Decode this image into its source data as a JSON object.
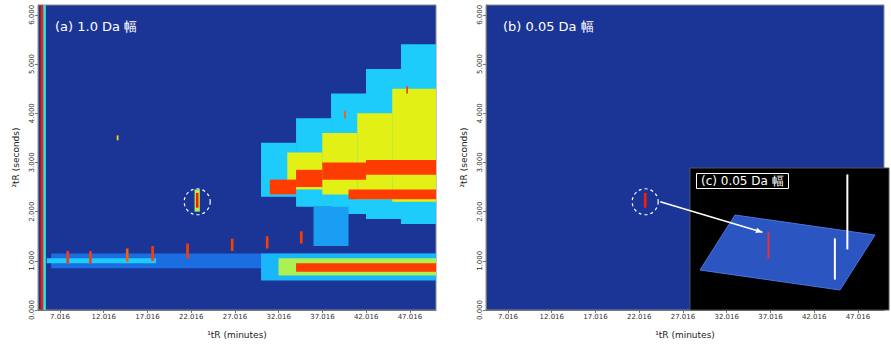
{
  "chart_data": [
    {
      "type": "heatmap",
      "title": "(a) 1.0 Da 幅",
      "x_label": "¹tR (minutes)",
      "y_label": "²tR (seconds)",
      "xlim": [
        4.5,
        50
      ],
      "ylim": [
        0,
        6.2
      ],
      "xticks": [
        7.016,
        12.016,
        17.016,
        22.016,
        27.016,
        32.016,
        37.016,
        42.016,
        47.016
      ],
      "yticks": [
        {
          "value": 0,
          "label": "0.000"
        },
        {
          "value": 1,
          "label": "1.000"
        },
        {
          "value": 2,
          "label": "2.000"
        },
        {
          "value": 3,
          "label": "3.000"
        },
        {
          "value": 4,
          "label": "4.000"
        },
        {
          "value": 5,
          "label": "5.000"
        },
        {
          "value": 6,
          "label": "6.000"
        }
      ],
      "zlim": [
        0,
        100
      ],
      "cells": [
        [
          4.8,
          5.1,
          0,
          6.2,
          100
        ],
        [
          5.1,
          5.4,
          0,
          6.2,
          45
        ],
        [
          6,
          50,
          0.85,
          1.15,
          15
        ],
        [
          5.5,
          18,
          0.95,
          1.05,
          35
        ],
        [
          7.75,
          8.05,
          0.95,
          1.2,
          95
        ],
        [
          10.35,
          10.65,
          0.95,
          1.2,
          95
        ],
        [
          14.55,
          14.85,
          0.98,
          1.25,
          90
        ],
        [
          17.45,
          17.75,
          1.0,
          1.3,
          95
        ],
        [
          21.45,
          21.75,
          1.05,
          1.35,
          95
        ],
        [
          26.55,
          26.85,
          1.2,
          1.45,
          95
        ],
        [
          30.55,
          30.85,
          1.25,
          1.5,
          95
        ],
        [
          34.45,
          34.75,
          1.35,
          1.6,
          95
        ],
        [
          38.45,
          38.75,
          1.4,
          1.65,
          95
        ],
        [
          22.4,
          23.0,
          2.0,
          2.45,
          60
        ],
        [
          22.55,
          22.85,
          2.08,
          2.38,
          100
        ],
        [
          30,
          34,
          2.3,
          3.4,
          35
        ],
        [
          34,
          38,
          2.1,
          3.9,
          35
        ],
        [
          38,
          42,
          1.95,
          4.4,
          35
        ],
        [
          42,
          46,
          1.85,
          4.9,
          35
        ],
        [
          46,
          50,
          1.75,
          5.4,
          35
        ],
        [
          33,
          37,
          2.45,
          3.2,
          65
        ],
        [
          37,
          41,
          2.35,
          3.6,
          65
        ],
        [
          41,
          45,
          2.25,
          4.0,
          65
        ],
        [
          45,
          50,
          2.2,
          4.5,
          65
        ],
        [
          31,
          34,
          2.35,
          2.65,
          95
        ],
        [
          34,
          37,
          2.5,
          2.85,
          95
        ],
        [
          37,
          42,
          2.65,
          3.0,
          95
        ],
        [
          42,
          50,
          2.75,
          3.05,
          95
        ],
        [
          40,
          50,
          2.25,
          2.45,
          95
        ],
        [
          30,
          50,
          0.6,
          1.15,
          30
        ],
        [
          32,
          50,
          0.7,
          1.05,
          60
        ],
        [
          34,
          50,
          0.78,
          0.95,
          95
        ],
        [
          36,
          40,
          1.3,
          2.1,
          25
        ],
        [
          46.6,
          46.8,
          4.4,
          4.55,
          95
        ],
        [
          39.5,
          39.7,
          3.9,
          4.05,
          90
        ],
        [
          13.5,
          13.7,
          3.45,
          3.55,
          70
        ]
      ],
      "marked_peak": [
        22.7,
        2.2
      ]
    },
    {
      "type": "heatmap",
      "title": "(b) 0.05 Da 幅",
      "x_label": "¹tR (minutes)",
      "y_label": "²tR (seconds)",
      "xlim": [
        4.5,
        50
      ],
      "ylim": [
        0,
        6.2
      ],
      "xticks": [
        7.016,
        12.016,
        17.016,
        22.016,
        27.016,
        32.016,
        37.016,
        42.016,
        47.016
      ],
      "yticks": [
        {
          "value": 0,
          "label": "0.000"
        },
        {
          "value": 1,
          "label": "1.000"
        },
        {
          "value": 2,
          "label": "2.000"
        },
        {
          "value": 3,
          "label": "3.000"
        },
        {
          "value": 4,
          "label": "4.000"
        },
        {
          "value": 5,
          "label": "5.000"
        },
        {
          "value": 6,
          "label": "6.000"
        }
      ],
      "zlim": [
        0,
        100
      ],
      "cells": [
        [
          22.55,
          22.85,
          2.08,
          2.38,
          100
        ]
      ],
      "marked_peak": [
        22.7,
        2.2
      ]
    },
    {
      "type": "surface",
      "title": "(c) 0.05 Da 幅",
      "xlim": [
        4.5,
        50
      ],
      "ylim": [
        0,
        6.2
      ],
      "zlim": [
        0,
        100
      ],
      "tick_labels": false,
      "peaks": {
        "x": [
          22.7,
          44.5,
          46.5
        ],
        "y": [
          2.2,
          4.3,
          1.0
        ],
        "height": [
          35,
          100,
          55
        ]
      },
      "colors": [
        "#e8303a",
        "#ffffff",
        "#ffffff"
      ]
    }
  ]
}
